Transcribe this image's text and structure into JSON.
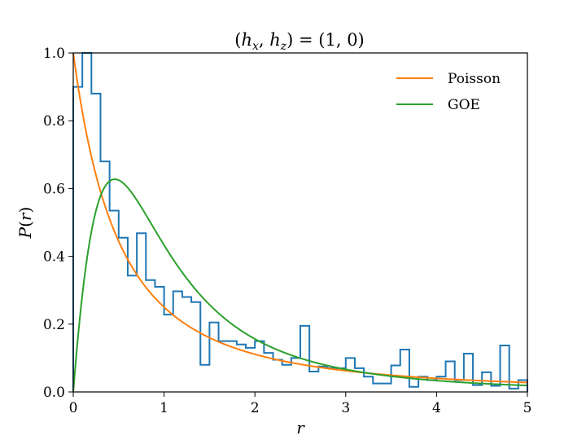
{
  "chart_data": {
    "type": "line",
    "title": "(h_x, h_z) = (1, 0)",
    "xlabel": "r",
    "ylabel": "P(r)",
    "xlim": [
      0,
      5
    ],
    "ylim": [
      0,
      1.0
    ],
    "xticks": [
      "0",
      "1",
      "2",
      "3",
      "4",
      "5"
    ],
    "yticks": [
      "0.0",
      "0.2",
      "0.4",
      "0.6",
      "0.8",
      "1.0"
    ],
    "grid": false,
    "legend_position": "top-right",
    "histogram": {
      "bin_width": 0.1,
      "bin_start": 0.0,
      "color": "#1f77b4",
      "values": [
        0.9,
        1.0,
        0.88,
        0.68,
        0.535,
        0.455,
        0.343,
        0.468,
        0.33,
        0.31,
        0.228,
        0.297,
        0.28,
        0.265,
        0.08,
        0.205,
        0.15,
        0.15,
        0.14,
        0.13,
        0.15,
        0.115,
        0.095,
        0.08,
        0.1,
        0.195,
        0.06,
        0.075,
        0.07,
        0.07,
        0.1,
        0.07,
        0.045,
        0.025,
        0.025,
        0.078,
        0.125,
        0.015,
        0.045,
        0.035,
        0.045,
        0.09,
        0.035,
        0.113,
        0.02,
        0.058,
        0.018,
        0.137,
        0.01,
        0.035
      ]
    },
    "series": [
      {
        "name": "Poisson",
        "color": "#ff7f0e",
        "formula": "1/(1+r)^2"
      },
      {
        "name": "GOE",
        "color": "#2ca02c",
        "formula": "(27/8)(r+r^2)/(1+r+r^2)^(5/2)"
      }
    ]
  }
}
